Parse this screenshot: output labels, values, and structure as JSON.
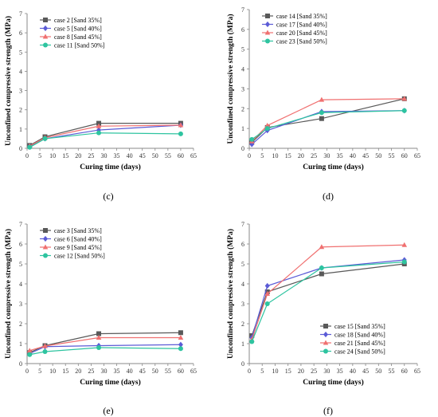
{
  "figure_title": "",
  "chart_data": [
    {
      "type": "line",
      "panel_label": "(c)",
      "xlabel": "Curing time (days)",
      "ylabel": "Unconfined compressive strength (MPa)",
      "xlim": [
        0,
        65
      ],
      "ylim": [
        0,
        7
      ],
      "xticks": [
        0,
        5,
        10,
        15,
        20,
        25,
        30,
        35,
        40,
        45,
        50,
        55,
        60,
        65
      ],
      "yticks": [
        0,
        1,
        2,
        3,
        4,
        5,
        6,
        7
      ],
      "grid": false,
      "legend_position": "top-left",
      "series": [
        {
          "name": "case 2 [Sand 35%]",
          "color": "#595959",
          "marker": "square",
          "x": [
            1,
            7,
            28,
            60
          ],
          "y": [
            0.15,
            0.6,
            1.3,
            1.3
          ]
        },
        {
          "name": "case 5 [Sand 40%]",
          "color": "#5b5bd6",
          "marker": "diamond",
          "x": [
            1,
            7,
            28,
            60
          ],
          "y": [
            0.1,
            0.5,
            0.95,
            1.2
          ]
        },
        {
          "name": "case 8 [Sand 45%]",
          "color": "#f07070",
          "marker": "triangle",
          "x": [
            1,
            7,
            28,
            60
          ],
          "y": [
            0.12,
            0.55,
            1.15,
            1.2
          ]
        },
        {
          "name": "case 11 [Sand 50%]",
          "color": "#2ec4a0",
          "marker": "circle",
          "x": [
            1,
            7,
            28,
            60
          ],
          "y": [
            0.05,
            0.5,
            0.8,
            0.75
          ]
        }
      ]
    },
    {
      "type": "line",
      "panel_label": "(d)",
      "xlabel": "Curing time (days)",
      "ylabel": "Unconfined compressive strength (MPa)",
      "xlim": [
        0,
        65
      ],
      "ylim": [
        0,
        7
      ],
      "xticks": [
        0,
        5,
        10,
        15,
        20,
        25,
        30,
        35,
        40,
        45,
        50,
        55,
        60,
        65
      ],
      "yticks": [
        0,
        1,
        2,
        3,
        4,
        5,
        6,
        7
      ],
      "grid": false,
      "legend_position": "top-left",
      "series": [
        {
          "name": "case 14 [Sand 35%]",
          "color": "#595959",
          "marker": "square",
          "x": [
            1,
            7,
            28,
            60
          ],
          "y": [
            0.3,
            1.05,
            1.5,
            2.5
          ]
        },
        {
          "name": "case 17 [Sand 40%]",
          "color": "#5b5bd6",
          "marker": "diamond",
          "x": [
            1,
            7,
            28,
            60
          ],
          "y": [
            0.2,
            0.9,
            1.85,
            1.9
          ]
        },
        {
          "name": "case 20 [Sand 45%]",
          "color": "#f07070",
          "marker": "triangle",
          "x": [
            1,
            7,
            28,
            60
          ],
          "y": [
            0.35,
            1.15,
            2.45,
            2.5
          ]
        },
        {
          "name": "case 23 [Sand 50%]",
          "color": "#2ec4a0",
          "marker": "circle",
          "x": [
            1,
            7,
            28,
            60
          ],
          "y": [
            0.45,
            1.0,
            1.8,
            1.9
          ]
        }
      ]
    },
    {
      "type": "line",
      "panel_label": "(e)",
      "xlabel": "Curing time (days)",
      "ylabel": "Unconfined compressive strength (MPa)",
      "xlim": [
        0,
        65
      ],
      "ylim": [
        0,
        7
      ],
      "xticks": [
        0,
        5,
        10,
        15,
        20,
        25,
        30,
        35,
        40,
        45,
        50,
        55,
        60,
        65
      ],
      "yticks": [
        0,
        1,
        2,
        3,
        4,
        5,
        6,
        7
      ],
      "grid": false,
      "legend_position": "top-left",
      "series": [
        {
          "name": "case 3 [Sand 35%]",
          "color": "#595959",
          "marker": "square",
          "x": [
            1,
            7,
            28,
            60
          ],
          "y": [
            0.55,
            0.9,
            1.5,
            1.55
          ]
        },
        {
          "name": "case 6 [Sand 40%]",
          "color": "#5b5bd6",
          "marker": "diamond",
          "x": [
            1,
            7,
            28,
            60
          ],
          "y": [
            0.5,
            0.85,
            0.9,
            0.95
          ]
        },
        {
          "name": "case 9 [Sand 45%]",
          "color": "#f07070",
          "marker": "triangle",
          "x": [
            1,
            7,
            28,
            60
          ],
          "y": [
            0.65,
            0.88,
            1.3,
            1.3
          ]
        },
        {
          "name": "case 12 [Sand 50%]",
          "color": "#2ec4a0",
          "marker": "circle",
          "x": [
            1,
            7,
            28,
            60
          ],
          "y": [
            0.45,
            0.6,
            0.8,
            0.75
          ]
        }
      ]
    },
    {
      "type": "line",
      "panel_label": "(f)",
      "xlabel": "Curing time (days)",
      "ylabel": "Unconfined compressive strength (MPa)",
      "xlim": [
        0,
        65
      ],
      "ylim": [
        0,
        7
      ],
      "xticks": [
        0,
        5,
        10,
        15,
        20,
        25,
        30,
        35,
        40,
        45,
        50,
        55,
        60,
        65
      ],
      "yticks": [
        0,
        1,
        2,
        3,
        4,
        5,
        6,
        7
      ],
      "grid": false,
      "legend_position": "bottom-right",
      "series": [
        {
          "name": "case 15 [Sand 35%]",
          "color": "#595959",
          "marker": "square",
          "x": [
            1,
            7,
            28,
            60
          ],
          "y": [
            1.4,
            3.6,
            4.5,
            5.0
          ]
        },
        {
          "name": "case 18 [Sand 40%]",
          "color": "#5b5bd6",
          "marker": "diamond",
          "x": [
            1,
            7,
            28,
            60
          ],
          "y": [
            1.3,
            3.9,
            4.8,
            5.2
          ]
        },
        {
          "name": "case 21 [Sand 45%]",
          "color": "#f07070",
          "marker": "triangle",
          "x": [
            1,
            7,
            28,
            60
          ],
          "y": [
            1.2,
            3.5,
            5.85,
            5.95
          ]
        },
        {
          "name": "case 24 [Sand 50%]",
          "color": "#2ec4a0",
          "marker": "circle",
          "x": [
            1,
            7,
            28,
            60
          ],
          "y": [
            1.1,
            3.0,
            4.8,
            5.1
          ]
        }
      ]
    }
  ]
}
